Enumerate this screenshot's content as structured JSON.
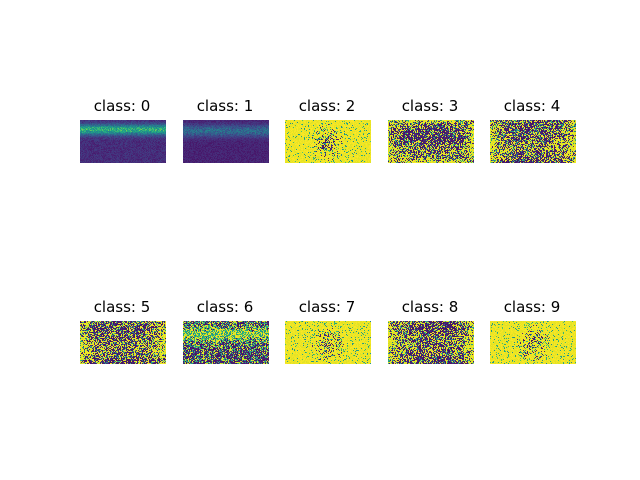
{
  "chart_data": {
    "type": "heatmap",
    "layout": {
      "rows": 2,
      "cols": 5
    },
    "colormap": "viridis",
    "value_range": [
      0,
      1
    ],
    "grid": false,
    "legend": "none",
    "panels": [
      {
        "title": "class: 0",
        "pattern": "top-band-low"
      },
      {
        "title": "class: 1",
        "pattern": "top-band-very-low"
      },
      {
        "title": "class: 2",
        "pattern": "mostly-high-center-mixed"
      },
      {
        "title": "class: 3",
        "pattern": "mixed-bright-ring"
      },
      {
        "title": "class: 4",
        "pattern": "mixed-bright-edges"
      },
      {
        "title": "class: 5",
        "pattern": "mixed-bright-edges"
      },
      {
        "title": "class: 6",
        "pattern": "bright-band-mixed"
      },
      {
        "title": "class: 7",
        "pattern": "mostly-high-center-mixed"
      },
      {
        "title": "class: 8",
        "pattern": "mixed-bright-edges"
      },
      {
        "title": "class: 9",
        "pattern": "mostly-high-center-mixed"
      }
    ]
  }
}
